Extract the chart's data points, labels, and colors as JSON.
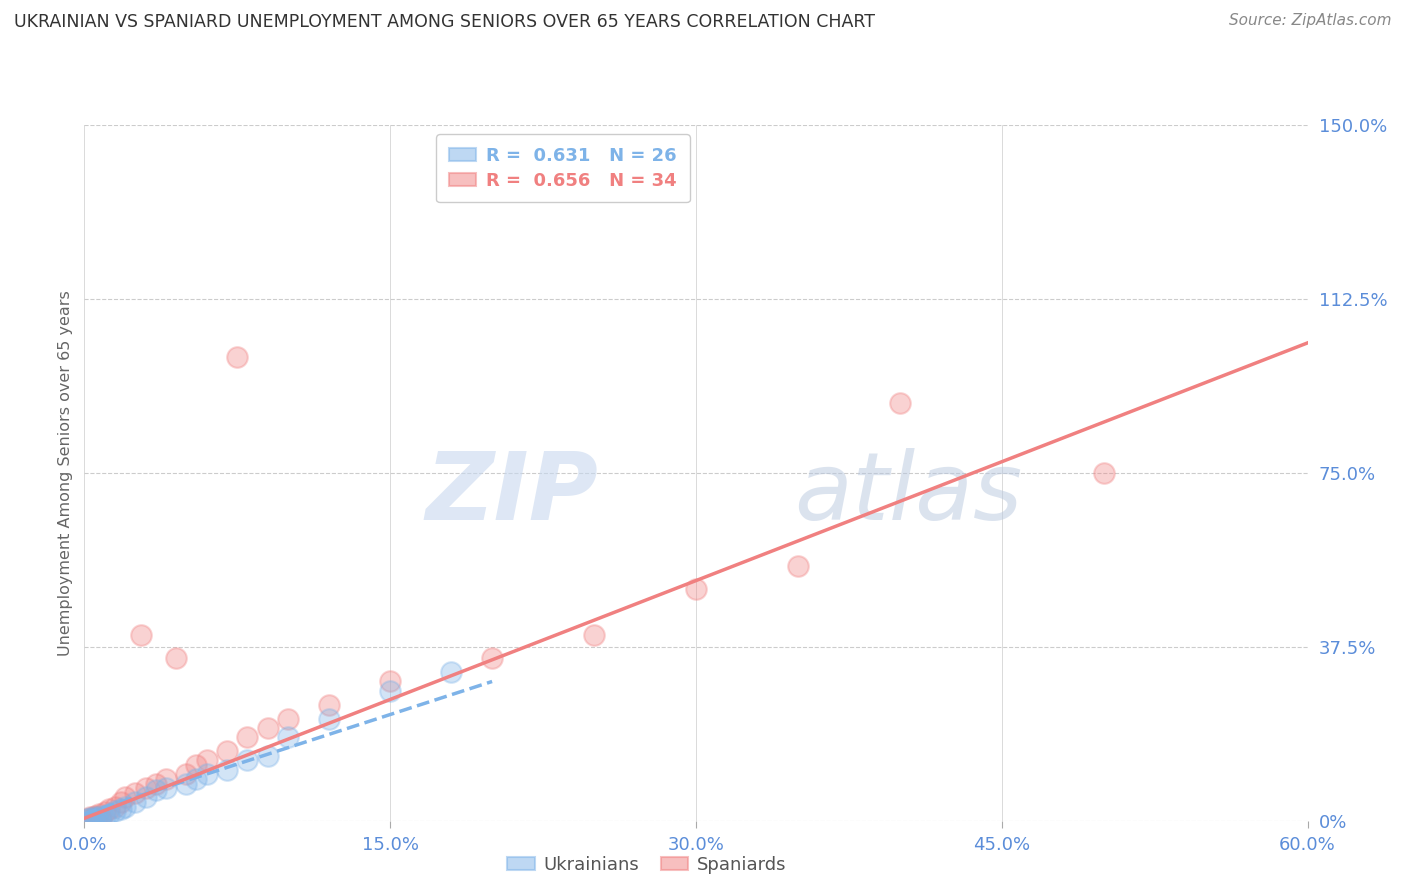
{
  "title": "UKRAINIAN VS SPANIARD UNEMPLOYMENT AMONG SENIORS OVER 65 YEARS CORRELATION CHART",
  "source": "Source: ZipAtlas.com",
  "xlabel_ticks": [
    "0.0%",
    "15.0%",
    "30.0%",
    "45.0%",
    "60.0%"
  ],
  "xlabel_vals": [
    0.0,
    15.0,
    30.0,
    45.0,
    60.0
  ],
  "ylabel_ticks": [
    "0%",
    "37.5%",
    "75.0%",
    "112.5%",
    "150.0%"
  ],
  "ylabel_vals": [
    0,
    37.5,
    75.0,
    112.5,
    150.0
  ],
  "ylabel_label": "Unemployment Among Seniors over 65 years",
  "ukrainian_color": "#7eb3e8",
  "spaniard_color": "#f08080",
  "ukrainian_R": 0.631,
  "ukrainian_N": 26,
  "spaniard_R": 0.656,
  "spaniard_N": 34,
  "watermark_zip": "ZIP",
  "watermark_atlas": "atlas",
  "background_color": "#ffffff",
  "grid_color": "#cccccc",
  "axis_label_color": "#5b8dd9",
  "title_color": "#333333",
  "ukrainian_scatter": [
    [
      0.2,
      0.3
    ],
    [
      0.3,
      0.5
    ],
    [
      0.4,
      0.2
    ],
    [
      0.5,
      0.8
    ],
    [
      0.6,
      0.4
    ],
    [
      0.7,
      0.6
    ],
    [
      0.8,
      1.0
    ],
    [
      1.0,
      0.8
    ],
    [
      1.2,
      1.5
    ],
    [
      1.5,
      2.0
    ],
    [
      1.8,
      2.5
    ],
    [
      2.0,
      3.0
    ],
    [
      2.5,
      4.0
    ],
    [
      3.0,
      5.0
    ],
    [
      3.5,
      6.5
    ],
    [
      4.0,
      7.0
    ],
    [
      5.0,
      8.0
    ],
    [
      5.5,
      9.0
    ],
    [
      6.0,
      10.0
    ],
    [
      7.0,
      11.0
    ],
    [
      8.0,
      13.0
    ],
    [
      9.0,
      14.0
    ],
    [
      10.0,
      18.0
    ],
    [
      12.0,
      22.0
    ],
    [
      15.0,
      28.0
    ],
    [
      18.0,
      32.0
    ]
  ],
  "spaniard_scatter": [
    [
      0.2,
      0.3
    ],
    [
      0.3,
      0.8
    ],
    [
      0.4,
      0.5
    ],
    [
      0.5,
      1.0
    ],
    [
      0.6,
      0.7
    ],
    [
      0.7,
      1.5
    ],
    [
      0.8,
      0.4
    ],
    [
      1.0,
      1.8
    ],
    [
      1.2,
      2.5
    ],
    [
      1.5,
      3.0
    ],
    [
      1.8,
      4.0
    ],
    [
      2.0,
      5.0
    ],
    [
      2.5,
      6.0
    ],
    [
      2.8,
      40.0
    ],
    [
      3.0,
      7.0
    ],
    [
      3.5,
      8.0
    ],
    [
      4.0,
      9.0
    ],
    [
      4.5,
      35.0
    ],
    [
      5.0,
      10.0
    ],
    [
      5.5,
      12.0
    ],
    [
      6.0,
      13.0
    ],
    [
      7.0,
      15.0
    ],
    [
      7.5,
      100.0
    ],
    [
      8.0,
      18.0
    ],
    [
      9.0,
      20.0
    ],
    [
      10.0,
      22.0
    ],
    [
      12.0,
      25.0
    ],
    [
      15.0,
      30.0
    ],
    [
      20.0,
      35.0
    ],
    [
      25.0,
      40.0
    ],
    [
      30.0,
      50.0
    ],
    [
      35.0,
      55.0
    ],
    [
      40.0,
      90.0
    ],
    [
      50.0,
      75.0
    ]
  ],
  "ukrainian_line": [
    [
      0.0,
      1.5
    ],
    [
      20.0,
      30.0
    ]
  ],
  "spaniard_line": [
    [
      0.0,
      0.5
    ],
    [
      60.0,
      103.0
    ]
  ],
  "xlim": [
    0,
    60
  ],
  "ylim": [
    0,
    150
  ]
}
